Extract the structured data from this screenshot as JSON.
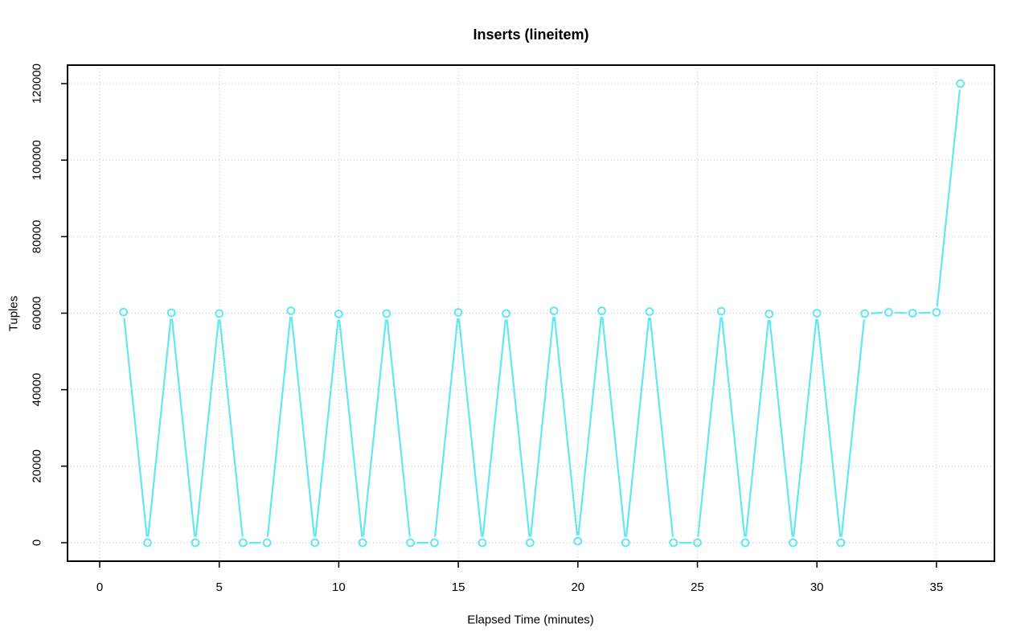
{
  "chart_data": {
    "type": "line",
    "title": "Inserts (lineitem)",
    "xlabel": "Elapsed Time (minutes)",
    "ylabel": "Tuples",
    "x": [
      1,
      2,
      3,
      4,
      5,
      6,
      7,
      8,
      9,
      10,
      11,
      12,
      13,
      14,
      15,
      16,
      17,
      18,
      19,
      20,
      21,
      22,
      23,
      24,
      25,
      26,
      27,
      28,
      29,
      30,
      31,
      32,
      33,
      34,
      35,
      36
    ],
    "values": [
      60300,
      0,
      60100,
      0,
      59900,
      0,
      0,
      60600,
      0,
      59800,
      0,
      59900,
      0,
      0,
      60200,
      0,
      59900,
      0,
      60600,
      400,
      60600,
      0,
      60400,
      0,
      0,
      60500,
      0,
      59800,
      0,
      60000,
      0,
      59900,
      60200,
      60000,
      60200,
      120000
    ],
    "series": [
      {
        "name": "inserts",
        "marker": "open-circle",
        "line_type": "both-points-and-lines"
      }
    ],
    "xticks": [
      0,
      5,
      10,
      15,
      20,
      25,
      30,
      35
    ],
    "yticks": [
      0,
      20000,
      40000,
      60000,
      80000,
      100000,
      120000
    ],
    "xlim": [
      0,
      37
    ],
    "ylim": [
      0,
      120000
    ],
    "grid": "dotted",
    "legend": "none",
    "colors": {
      "series": "#62E8F0",
      "grid": "#C4C4C4",
      "axis": "#000000",
      "background": "#FFFFFF"
    }
  }
}
